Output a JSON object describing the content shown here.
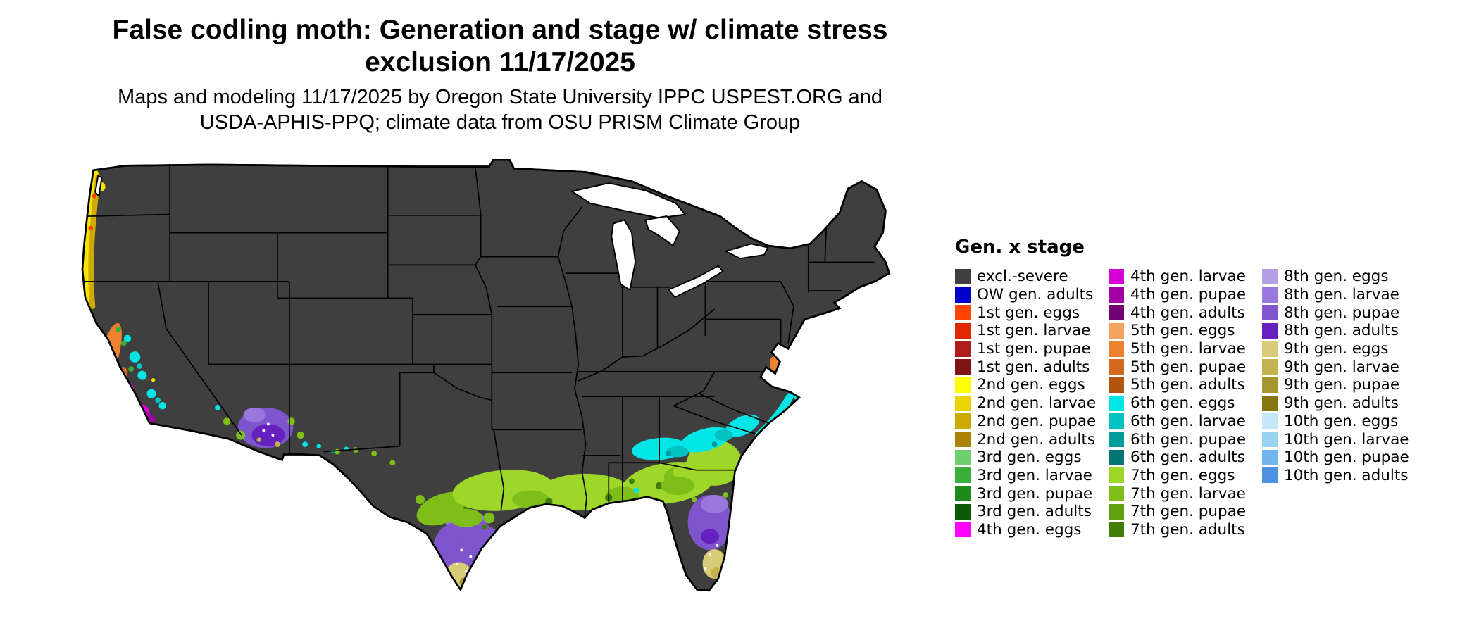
{
  "title": {
    "line1": "False codling moth: Generation and stage w/ climate stress",
    "line2": "exclusion 11/17/2025"
  },
  "subtitle": {
    "line1": "Maps and modeling 11/17/2025 by Oregon State University IPPC USPEST.ORG and",
    "line2": "USDA-APHIS-PPQ; climate data from OSU PRISM Climate Group"
  },
  "map": {
    "base_fill": "#3F3F3F",
    "state_border_color": "#000000",
    "background": "#FFFFFF"
  },
  "legend": {
    "title": "Gen. x stage",
    "columns": [
      [
        {
          "label": "excl.-severe",
          "color": "#3F3F3F"
        },
        {
          "label": "OW gen. adults",
          "color": "#0000CC"
        },
        {
          "label": "1st gen. eggs",
          "color": "#FF4500"
        },
        {
          "label": "1st gen. larvae",
          "color": "#DF2800"
        },
        {
          "label": "1st gen. pupae",
          "color": "#AE1C1C"
        },
        {
          "label": "1st gen. adults",
          "color": "#7E1414"
        },
        {
          "label": "2nd gen. eggs",
          "color": "#FFFF00"
        },
        {
          "label": "2nd gen. larvae",
          "color": "#E8D400"
        },
        {
          "label": "2nd gen. pupae",
          "color": "#CCAA00"
        },
        {
          "label": "2nd gen. adults",
          "color": "#AA8400"
        },
        {
          "label": "3rd gen. eggs",
          "color": "#6FCF6F"
        },
        {
          "label": "3rd gen. larvae",
          "color": "#3CAE3C"
        },
        {
          "label": "3rd gen. pupae",
          "color": "#1E8A1E"
        },
        {
          "label": "3rd gen. adults",
          "color": "#0A5A0A"
        },
        {
          "label": "4th gen. eggs",
          "color": "#FF00FF"
        }
      ],
      [
        {
          "label": "4th gen. larvae",
          "color": "#D400D4"
        },
        {
          "label": "4th gen. pupae",
          "color": "#A300A3"
        },
        {
          "label": "4th gen. adults",
          "color": "#700070"
        },
        {
          "label": "5th gen. eggs",
          "color": "#F4A460"
        },
        {
          "label": "5th gen. larvae",
          "color": "#EC8230"
        },
        {
          "label": "5th gen. pupae",
          "color": "#D2691E"
        },
        {
          "label": "5th gen. adults",
          "color": "#B05510"
        },
        {
          "label": "6th gen. eggs",
          "color": "#00E6E6"
        },
        {
          "label": "6th gen. larvae",
          "color": "#00C2C2"
        },
        {
          "label": "6th gen. pupae",
          "color": "#009C9C"
        },
        {
          "label": "6th gen. adults",
          "color": "#007474"
        },
        {
          "label": "7th gen. eggs",
          "color": "#9ED62A"
        },
        {
          "label": "7th gen. larvae",
          "color": "#7FBE18"
        },
        {
          "label": "7th gen. pupae",
          "color": "#5FA010"
        },
        {
          "label": "7th gen. adults",
          "color": "#407E08"
        }
      ],
      [
        {
          "label": "8th gen. eggs",
          "color": "#B5A0E8"
        },
        {
          "label": "8th gen. larvae",
          "color": "#9878DC"
        },
        {
          "label": "8th gen. pupae",
          "color": "#7E55CC"
        },
        {
          "label": "8th gen. adults",
          "color": "#6620C0"
        },
        {
          "label": "9th gen. eggs",
          "color": "#D9CC78"
        },
        {
          "label": "9th gen. larvae",
          "color": "#C4B24E"
        },
        {
          "label": "9th gen. pupae",
          "color": "#A6942C"
        },
        {
          "label": "9th gen. adults",
          "color": "#857610"
        },
        {
          "label": "10th gen. eggs",
          "color": "#C2E8FA"
        },
        {
          "label": "10th gen. larvae",
          "color": "#98D4F2"
        },
        {
          "label": "10th gen. pupae",
          "color": "#70B6EC"
        },
        {
          "label": "10th gen. adults",
          "color": "#4E92E4"
        }
      ]
    ]
  }
}
